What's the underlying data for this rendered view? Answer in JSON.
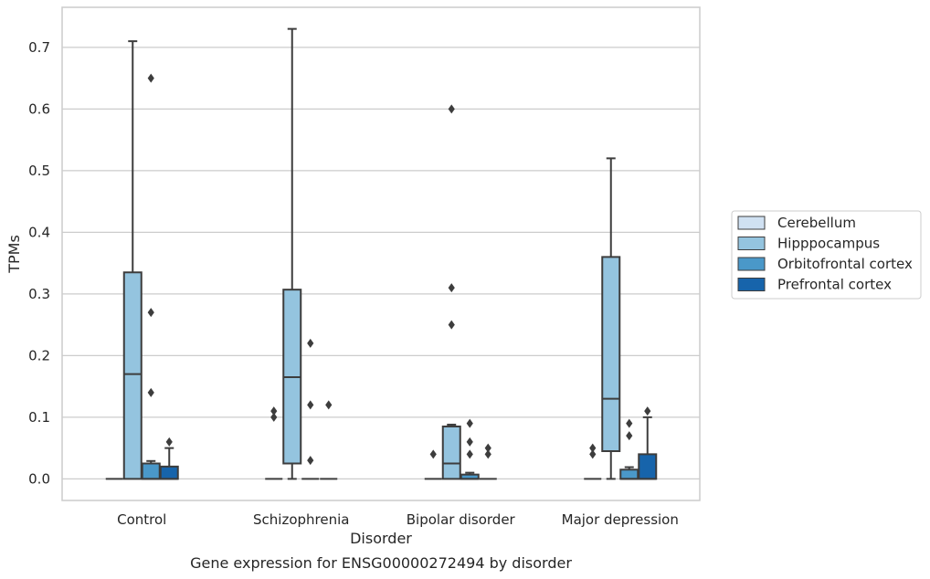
{
  "caption": "Gene expression for ENSG00000272494 by disorder",
  "chart_data": {
    "type": "box",
    "xlabel": "Disorder",
    "ylabel": "TPMs",
    "categories": [
      "Control",
      "Schizophrenia",
      "Bipolar disorder",
      "Major depression"
    ],
    "ylim": [
      -0.035,
      0.765
    ],
    "yticks": [
      0.0,
      0.1,
      0.2,
      0.3,
      0.4,
      0.5,
      0.6,
      0.7
    ],
    "ytick_labels": [
      "0.0",
      "0.1",
      "0.2",
      "0.3",
      "0.4",
      "0.5",
      "0.6",
      "0.7"
    ],
    "grid": "horizontal",
    "legend_position": "right",
    "series": [
      {
        "name": "Cerebellum",
        "color": "#d0e1f2",
        "boxes": [
          {
            "q1": 0,
            "median": 0,
            "q3": 0,
            "whislo": 0,
            "whishi": 0,
            "fliers": []
          },
          {
            "q1": 0,
            "median": 0,
            "q3": 0,
            "whislo": 0,
            "whishi": 0,
            "fliers": [
              0.1,
              0.11
            ]
          },
          {
            "q1": 0,
            "median": 0,
            "q3": 0,
            "whislo": 0,
            "whishi": 0,
            "fliers": [
              0.04
            ]
          },
          {
            "q1": 0,
            "median": 0,
            "q3": 0,
            "whislo": 0,
            "whishi": 0,
            "fliers": [
              0.04,
              0.05
            ]
          }
        ]
      },
      {
        "name": "Hipppocampus",
        "color": "#94c4df",
        "boxes": [
          {
            "q1": 0,
            "median": 0.17,
            "q3": 0.335,
            "whislo": 0,
            "whishi": 0.71,
            "fliers": []
          },
          {
            "q1": 0.025,
            "median": 0.165,
            "q3": 0.307,
            "whislo": 0,
            "whishi": 0.73,
            "fliers": []
          },
          {
            "q1": 0,
            "median": 0.025,
            "q3": 0.085,
            "whislo": 0,
            "whishi": 0.088,
            "fliers": [
              0.25,
              0.31,
              0.6
            ]
          },
          {
            "q1": 0.045,
            "median": 0.13,
            "q3": 0.36,
            "whislo": 0,
            "whishi": 0.52,
            "fliers": []
          }
        ]
      },
      {
        "name": "Orbitofrontal cortex",
        "color": "#4a98c9",
        "boxes": [
          {
            "q1": 0,
            "median": 0,
            "q3": 0.025,
            "whislo": 0,
            "whishi": 0.029,
            "fliers": [
              0.14,
              0.27,
              0.65
            ]
          },
          {
            "q1": 0,
            "median": 0,
            "q3": 0,
            "whislo": 0,
            "whishi": 0,
            "fliers": [
              0.03,
              0.12,
              0.22
            ]
          },
          {
            "q1": 0,
            "median": 0,
            "q3": 0.007,
            "whislo": 0,
            "whishi": 0.01,
            "fliers": [
              0.04,
              0.06,
              0.09
            ]
          },
          {
            "q1": 0,
            "median": 0,
            "q3": 0.015,
            "whislo": 0,
            "whishi": 0.019,
            "fliers": [
              0.07,
              0.09
            ]
          }
        ]
      },
      {
        "name": "Prefrontal cortex",
        "color": "#1764ab",
        "boxes": [
          {
            "q1": 0,
            "median": 0,
            "q3": 0.02,
            "whislo": 0,
            "whishi": 0.05,
            "fliers": [
              0.06
            ]
          },
          {
            "q1": 0,
            "median": 0,
            "q3": 0,
            "whislo": 0,
            "whishi": 0,
            "fliers": [
              0.12
            ]
          },
          {
            "q1": 0,
            "median": 0,
            "q3": 0,
            "whislo": 0,
            "whishi": 0,
            "fliers": [
              0.04,
              0.05
            ]
          },
          {
            "q1": 0,
            "median": 0,
            "q3": 0.04,
            "whislo": 0,
            "whishi": 0.1,
            "fliers": [
              0.11
            ]
          }
        ]
      }
    ]
  }
}
